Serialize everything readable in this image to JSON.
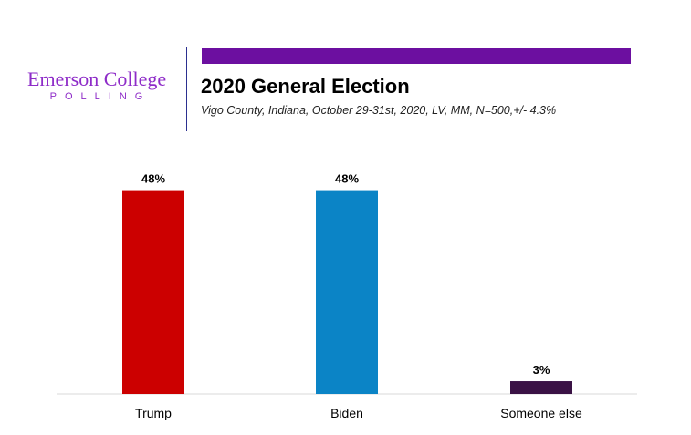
{
  "logo": {
    "name": "Emerson College",
    "tagline": "POLLING",
    "color": "#8e2cc8"
  },
  "accent_color": "#6c0fa0",
  "chart_data": {
    "type": "bar",
    "title": "2020 General Election",
    "subtitle": "Vigo County, Indiana, October 29-31st, 2020, LV, MM,  N=500,+/- 4.3%",
    "xlabel": "",
    "ylabel": "",
    "ylim": [
      0,
      55
    ],
    "grid": false,
    "categories": [
      "Trump",
      "Biden",
      "Someone else"
    ],
    "values": [
      48,
      48,
      3
    ],
    "value_labels": [
      "48%",
      "48%",
      "3%"
    ],
    "colors": [
      "#cc0000",
      "#0b84c6",
      "#3a1245"
    ]
  }
}
